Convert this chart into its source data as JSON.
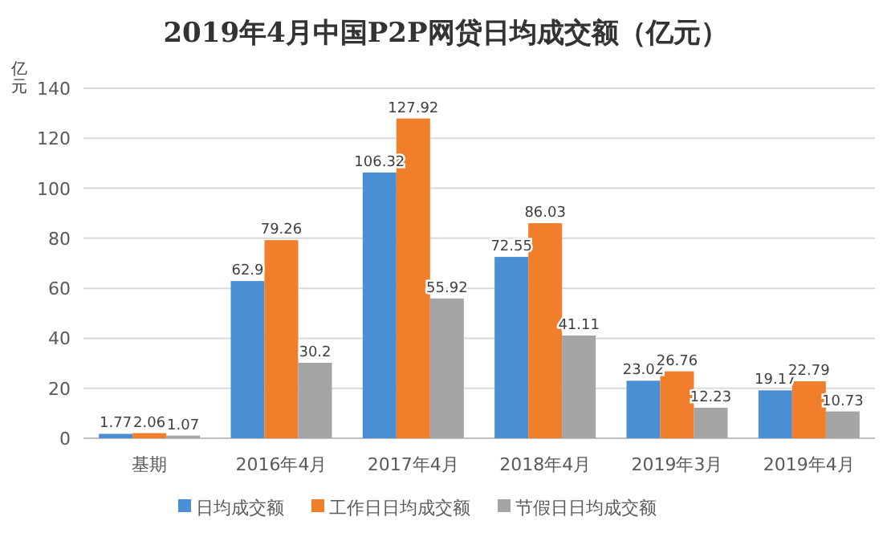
{
  "chart_data": {
    "type": "bar",
    "title": "2019年4月中国P2P网贷日均成交额（亿元）",
    "ylabel": "亿元",
    "categories": [
      "基期",
      "2016年4月",
      "2017年4月",
      "2018年4月",
      "2019年3月",
      "2019年4月"
    ],
    "series": [
      {
        "name": "日均成交额",
        "color": "#4a8fd4",
        "values": [
          1.77,
          62.9,
          106.32,
          72.55,
          23.02,
          19.17
        ]
      },
      {
        "name": "工作日日均成交额",
        "color": "#f07e2a",
        "values": [
          2.06,
          79.26,
          127.92,
          86.03,
          26.76,
          22.79
        ]
      },
      {
        "name": "节假日日均成交额",
        "color": "#a5a5a5",
        "values": [
          1.07,
          30.2,
          55.92,
          41.11,
          12.23,
          10.73
        ]
      }
    ],
    "ylim": [
      0,
      140
    ],
    "yticks": [
      0,
      20,
      40,
      60,
      80,
      100,
      120,
      140
    ],
    "grid": "y",
    "legend": "bottom",
    "data_labels": true
  }
}
